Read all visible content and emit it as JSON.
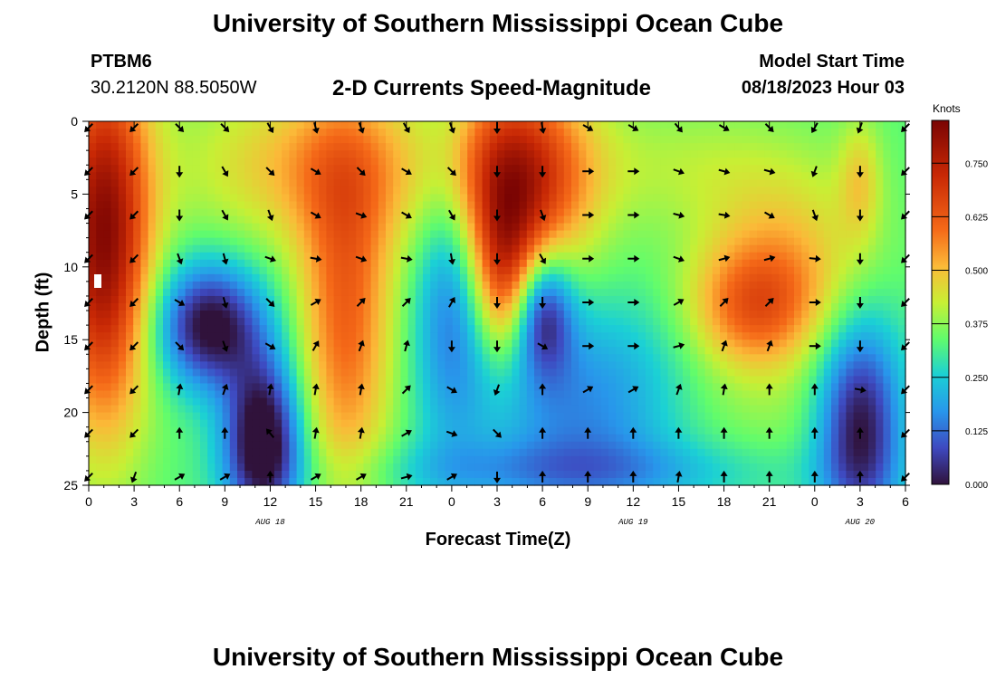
{
  "header": {
    "title": "University of Southern Mississippi Ocean Cube",
    "station_id": "PTBM6",
    "coordinates": "30.2120N  88.5050W",
    "model_start_label": "Model Start Time",
    "model_start_value": "08/18/2023 Hour 03"
  },
  "footer": {
    "title": "University of Southern Mississippi Ocean Cube"
  },
  "chart_data": {
    "type": "heatmap",
    "title": "2-D Currents Speed-Magnitude",
    "xlabel": "Forecast Time(Z)",
    "ylabel": "Depth (ft)",
    "x_tick_labels": [
      "0",
      "3",
      "6",
      "9",
      "12",
      "15",
      "18",
      "21",
      "0",
      "3",
      "6",
      "9",
      "12",
      "15",
      "18",
      "21",
      "0",
      "3",
      "6"
    ],
    "x_range_hours": [
      0,
      54
    ],
    "date_labels": [
      {
        "text": "AUG 18",
        "hour": 12
      },
      {
        "text": "AUG 19",
        "hour": 36
      },
      {
        "text": "AUG 20",
        "hour": 51
      }
    ],
    "y_range_ft": [
      0,
      25
    ],
    "y_ticks": [
      0,
      5,
      10,
      15,
      20,
      25
    ],
    "colorbar": {
      "unit": "Knots",
      "range": [
        0,
        0.85
      ],
      "tick_values": [
        0.0,
        0.125,
        0.25,
        0.375,
        0.5,
        0.625,
        0.75
      ],
      "tick_labels": [
        "0.000",
        "0.125",
        "0.250",
        "0.375",
        "0.500",
        "0.625",
        "0.750"
      ]
    },
    "arrow_times_hours": [
      0,
      3,
      6,
      9,
      12,
      15,
      18,
      21,
      24,
      27,
      30,
      33,
      36,
      39,
      42,
      45,
      48,
      51,
      54
    ],
    "arrow_depths_ft": [
      0,
      3,
      6,
      9,
      12,
      15,
      18,
      21,
      24
    ],
    "arrow_angles_deg": [
      [
        225,
        225,
        135,
        135,
        150,
        165,
        160,
        150,
        160,
        180,
        170,
        120,
        120,
        140,
        120,
        135,
        210,
        200,
        225
      ],
      [
        225,
        225,
        180,
        150,
        135,
        120,
        135,
        120,
        135,
        180,
        180,
        90,
        90,
        110,
        105,
        105,
        200,
        180,
        225
      ],
      [
        225,
        225,
        180,
        150,
        160,
        120,
        110,
        120,
        150,
        180,
        160,
        90,
        90,
        105,
        100,
        120,
        160,
        180,
        225
      ],
      [
        225,
        225,
        160,
        165,
        110,
        100,
        110,
        100,
        170,
        180,
        150,
        90,
        90,
        110,
        75,
        75,
        95,
        180,
        225
      ],
      [
        225,
        225,
        120,
        165,
        135,
        60,
        45,
        45,
        30,
        180,
        180,
        90,
        90,
        60,
        45,
        45,
        90,
        180,
        225
      ],
      [
        225,
        225,
        135,
        160,
        120,
        30,
        20,
        15,
        180,
        180,
        120,
        90,
        90,
        75,
        20,
        20,
        90,
        180,
        225
      ],
      [
        225,
        225,
        10,
        20,
        10,
        10,
        10,
        45,
        120,
        200,
        0,
        60,
        60,
        20,
        10,
        0,
        0,
        100,
        225
      ],
      [
        225,
        225,
        0,
        0,
        320,
        10,
        10,
        60,
        110,
        135,
        0,
        0,
        0,
        0,
        0,
        0,
        0,
        0,
        225
      ],
      [
        225,
        200,
        60,
        60,
        0,
        60,
        60,
        75,
        60,
        180,
        0,
        0,
        0,
        10,
        0,
        0,
        0,
        0,
        225
      ]
    ]
  }
}
